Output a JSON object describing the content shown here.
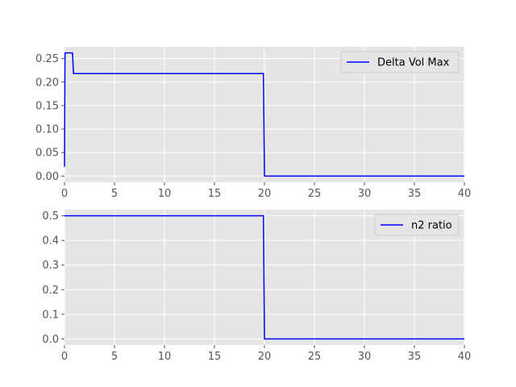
{
  "chart_data": [
    {
      "type": "line",
      "title": "",
      "xlabel": "",
      "ylabel": "",
      "xlim": [
        0,
        40
      ],
      "ylim": [
        -0.0131,
        0.2751
      ],
      "xticks": [
        0,
        5,
        10,
        15,
        20,
        25,
        30,
        35,
        40
      ],
      "xtick_labels": [
        "0",
        "5",
        "10",
        "15",
        "20",
        "25",
        "30",
        "35",
        "40"
      ],
      "yticks": [
        0.0,
        0.05,
        0.1,
        0.15,
        0.2,
        0.25
      ],
      "ytick_labels": [
        "0.00",
        "0.05",
        "0.10",
        "0.15",
        "0.20",
        "0.25"
      ],
      "grid": true,
      "legend_position": "upper-right",
      "series": [
        {
          "name": "Delta Vol Max",
          "color": "#0000ff",
          "x": [
            0,
            0.05,
            0.8,
            0.9,
            19.9,
            20.0,
            40
          ],
          "y": [
            0.02,
            0.262,
            0.262,
            0.218,
            0.218,
            0.0,
            0.0
          ]
        }
      ]
    },
    {
      "type": "line",
      "title": "",
      "xlabel": "",
      "ylabel": "",
      "xlim": [
        0,
        40
      ],
      "ylim": [
        -0.025,
        0.525
      ],
      "xticks": [
        0,
        5,
        10,
        15,
        20,
        25,
        30,
        35,
        40
      ],
      "xtick_labels": [
        "0",
        "5",
        "10",
        "15",
        "20",
        "25",
        "30",
        "35",
        "40"
      ],
      "yticks": [
        0.0,
        0.1,
        0.2,
        0.3,
        0.4,
        0.5
      ],
      "ytick_labels": [
        "0.0",
        "0.1",
        "0.2",
        "0.3",
        "0.4",
        "0.5"
      ],
      "grid": true,
      "legend_position": "upper-right",
      "series": [
        {
          "name": "n2 ratio",
          "color": "#0000ff",
          "x": [
            0,
            19.9,
            20.0,
            40
          ],
          "y": [
            0.5,
            0.5,
            0.0,
            0.0
          ]
        }
      ]
    }
  ]
}
